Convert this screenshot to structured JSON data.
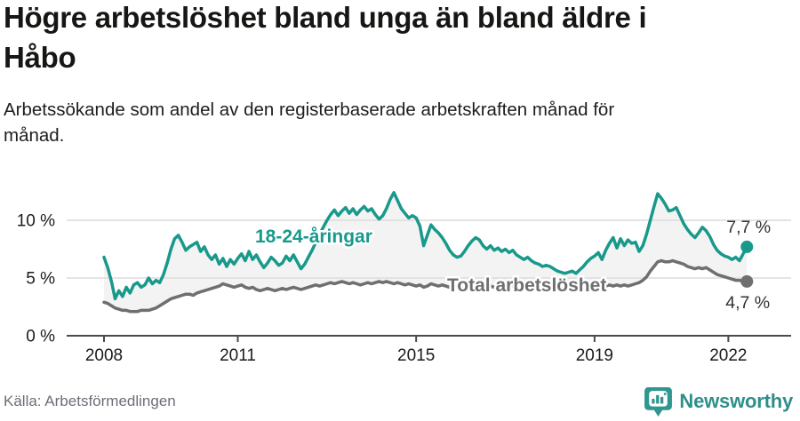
{
  "header": {
    "title_lines": [
      "Högre arbetslöshet bland unga än bland äldre i",
      "Håbo"
    ],
    "subtitle_lines": [
      "Arbetssökande som andel av den registerbaserade arbetskraften månad för",
      "månad."
    ]
  },
  "footer": {
    "source": "Källa: Arbetsförmedlingen",
    "brand": "Newsworthy",
    "logo_icon": "bar-chart-speech-bubble-icon",
    "brand_color": "#2e8f8a"
  },
  "chart_data": {
    "type": "line",
    "title": "Högre arbetslöshet bland unga än bland äldre i Håbo",
    "subtitle": "Arbetssökande som andel av den registerbaserade arbetskraften månad för månad.",
    "unit": "%",
    "x_start": "2008-01",
    "x_interval": "monthly",
    "x_tick_years": [
      2008,
      2011,
      2015,
      2019,
      2022
    ],
    "y_ticks": [
      {
        "value": 0,
        "label": "0 %"
      },
      {
        "value": 5,
        "label": "5 %"
      },
      {
        "value": 10,
        "label": "10 %"
      }
    ],
    "ylim": [
      0,
      13
    ],
    "grid": "horizontal",
    "fill_between": true,
    "fill_color": "#f3f3f3",
    "axis_color": "#4a4a4a",
    "grid_color": "#dcdcdc",
    "series": [
      {
        "name": "18-24-åringar",
        "color": "#18998b",
        "end_label": "7,7 %",
        "last_value": 7.7,
        "values": [
          6.8,
          5.9,
          4.7,
          3.2,
          3.9,
          3.4,
          4.2,
          3.7,
          4.4,
          4.6,
          4.2,
          4.4,
          5.0,
          4.5,
          4.8,
          4.6,
          5.3,
          6.3,
          7.5,
          8.4,
          8.7,
          8.1,
          7.4,
          7.7,
          7.9,
          8.1,
          7.3,
          7.7,
          7.0,
          6.6,
          7.0,
          6.2,
          6.7,
          6.0,
          6.6,
          6.2,
          6.7,
          7.1,
          6.5,
          7.3,
          6.6,
          7.0,
          6.4,
          5.9,
          6.3,
          6.8,
          6.5,
          6.1,
          6.3,
          6.9,
          6.5,
          7.0,
          6.4,
          5.8,
          6.2,
          6.8,
          7.4,
          8.1,
          8.8,
          9.4,
          10.0,
          10.5,
          10.9,
          10.4,
          10.8,
          11.1,
          10.6,
          11.0,
          10.5,
          10.9,
          11.2,
          10.8,
          11.0,
          10.5,
          10.1,
          10.4,
          11.0,
          11.8,
          12.4,
          11.7,
          11.0,
          10.6,
          10.2,
          10.4,
          10.2,
          9.5,
          7.8,
          8.7,
          9.6,
          9.2,
          8.9,
          8.5,
          8.0,
          7.4,
          7.0,
          6.8,
          6.9,
          7.3,
          7.8,
          8.2,
          8.5,
          8.3,
          7.8,
          7.5,
          7.8,
          7.4,
          7.6,
          7.3,
          7.5,
          7.2,
          7.4,
          7.0,
          6.8,
          6.6,
          6.8,
          6.5,
          6.3,
          6.2,
          6.0,
          6.1,
          6.0,
          5.8,
          5.6,
          5.5,
          5.4,
          5.5,
          5.6,
          5.4,
          5.7,
          6.0,
          6.4,
          6.7,
          6.9,
          7.2,
          6.6,
          7.4,
          8.0,
          8.5,
          7.6,
          8.4,
          7.8,
          8.3,
          8.0,
          8.1,
          7.3,
          7.8,
          8.8,
          10.0,
          11.2,
          12.3,
          11.9,
          11.4,
          10.8,
          10.9,
          11.1,
          10.4,
          9.7,
          9.2,
          8.8,
          8.5,
          8.9,
          9.4,
          9.1,
          8.6,
          7.9,
          7.4,
          7.1,
          6.9,
          6.8,
          6.6,
          6.8,
          6.5,
          7.1,
          7.7
        ]
      },
      {
        "name": "Total arbetslöshet",
        "color": "#6f6f6f",
        "end_label": "4,7 %",
        "last_value": 4.7,
        "values": [
          2.9,
          2.8,
          2.6,
          2.4,
          2.3,
          2.2,
          2.2,
          2.1,
          2.1,
          2.1,
          2.2,
          2.2,
          2.2,
          2.3,
          2.4,
          2.6,
          2.8,
          3.0,
          3.2,
          3.3,
          3.4,
          3.5,
          3.6,
          3.6,
          3.5,
          3.7,
          3.8,
          3.9,
          4.0,
          4.1,
          4.2,
          4.3,
          4.5,
          4.4,
          4.3,
          4.2,
          4.3,
          4.4,
          4.2,
          4.1,
          4.2,
          4.0,
          3.9,
          4.0,
          4.1,
          4.0,
          3.9,
          4.0,
          4.1,
          4.0,
          4.1,
          4.2,
          4.1,
          4.0,
          4.1,
          4.2,
          4.3,
          4.4,
          4.3,
          4.4,
          4.5,
          4.6,
          4.5,
          4.6,
          4.7,
          4.6,
          4.5,
          4.6,
          4.5,
          4.4,
          4.5,
          4.6,
          4.5,
          4.6,
          4.7,
          4.6,
          4.7,
          4.6,
          4.5,
          4.6,
          4.5,
          4.4,
          4.5,
          4.4,
          4.3,
          4.4,
          4.2,
          4.3,
          4.5,
          4.4,
          4.3,
          4.4,
          4.3,
          4.2,
          4.3,
          4.2,
          4.3,
          4.4,
          4.3,
          4.4,
          4.5,
          4.4,
          4.3,
          4.4,
          4.3,
          4.2,
          4.3,
          4.4,
          4.3,
          4.4,
          4.3,
          4.2,
          4.3,
          4.2,
          4.1,
          4.2,
          4.3,
          4.2,
          4.1,
          4.2,
          4.1,
          4.2,
          4.1,
          4.0,
          4.1,
          4.2,
          4.1,
          4.2,
          4.3,
          4.2,
          4.3,
          4.2,
          4.2,
          4.3,
          4.2,
          4.3,
          4.4,
          4.3,
          4.4,
          4.3,
          4.4,
          4.3,
          4.4,
          4.5,
          4.6,
          4.8,
          5.1,
          5.6,
          6.0,
          6.4,
          6.5,
          6.4,
          6.4,
          6.5,
          6.4,
          6.3,
          6.2,
          6.0,
          5.9,
          5.8,
          5.9,
          5.8,
          5.9,
          5.7,
          5.5,
          5.3,
          5.2,
          5.1,
          5.0,
          4.9,
          4.8,
          4.8,
          4.7,
          4.7
        ]
      }
    ]
  }
}
